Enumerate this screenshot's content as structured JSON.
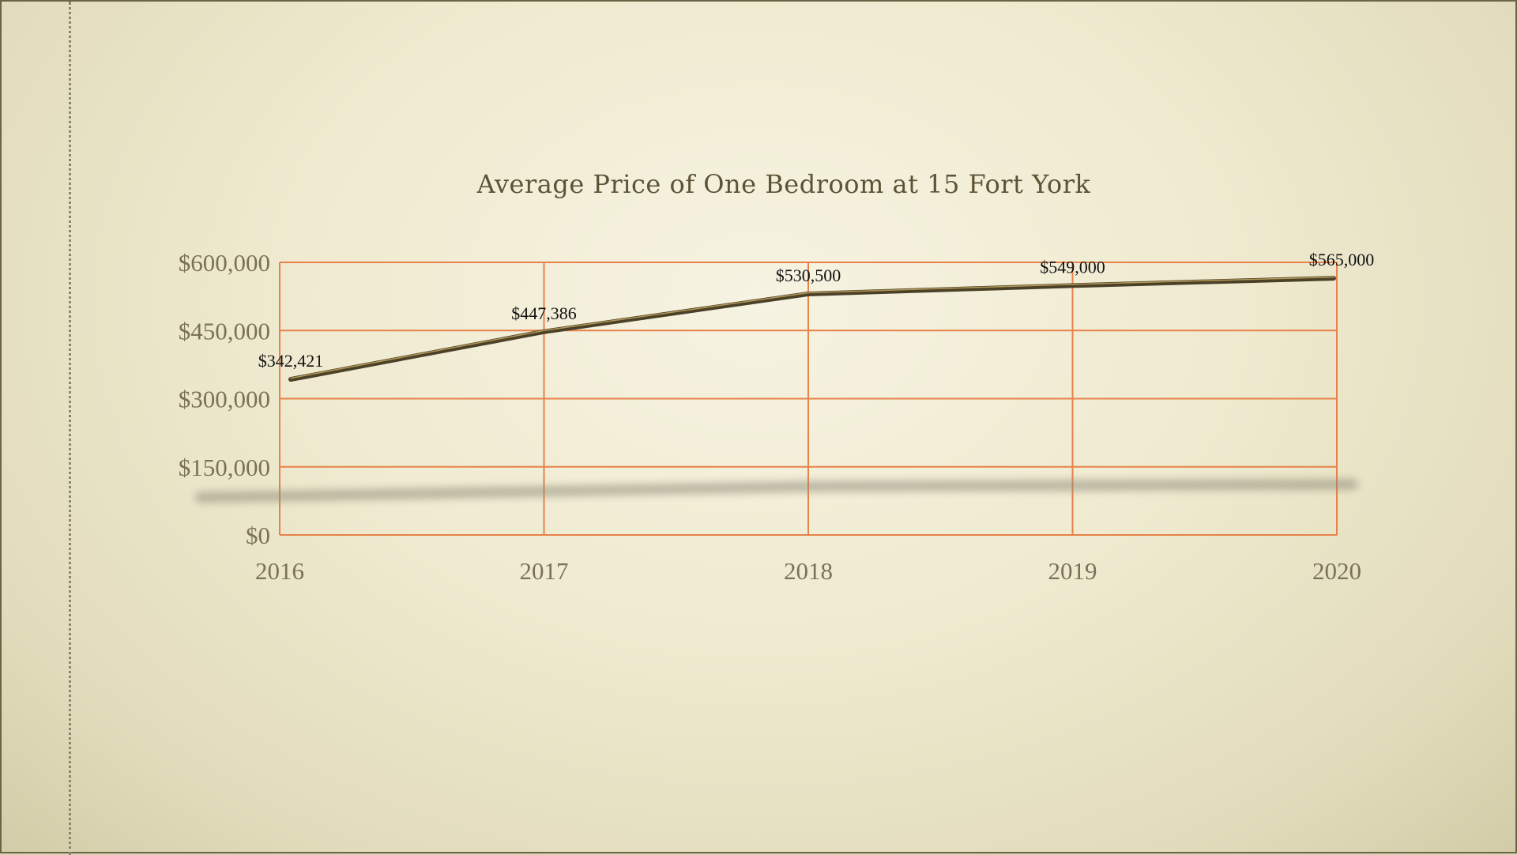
{
  "chart_data": {
    "type": "line",
    "title": "Average Price of One Bedroom at 15 Fort York",
    "xlabel": "",
    "ylabel": "",
    "categories": [
      "2016",
      "2017",
      "2018",
      "2019",
      "2020"
    ],
    "series": [
      {
        "values": [
          342421,
          447386,
          530500,
          549000,
          565000
        ],
        "data_labels": [
          "$342,421",
          "$447,386",
          "$530,500",
          "$549,000",
          "$565,000"
        ]
      }
    ],
    "y_ticks": [
      {
        "value": 0,
        "label": "$0"
      },
      {
        "value": 150000,
        "label": "$150,000"
      },
      {
        "value": 300000,
        "label": "$300,000"
      },
      {
        "value": 450000,
        "label": "$450,000"
      },
      {
        "value": 600000,
        "label": "$600,000"
      }
    ],
    "ylim": [
      0,
      600000
    ],
    "grid": true,
    "colors": {
      "grid": "#e8814a",
      "line": "#4a4128",
      "line_highlight": "#b59a58",
      "tick_text": "#7a7258",
      "title_text": "#5c5236"
    }
  }
}
